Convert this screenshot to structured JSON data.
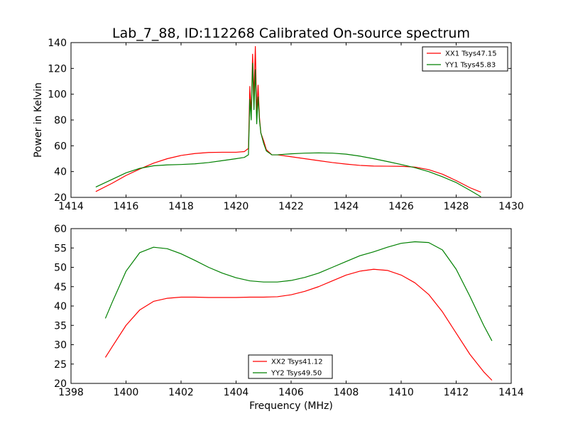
{
  "figure": {
    "title": "Lab_7_88, ID:112268 Calibrated On-source spectrum"
  },
  "chart_data": [
    {
      "type": "line",
      "title": "Lab_7_88, ID:112268 Calibrated On-source spectrum",
      "xlabel": "",
      "ylabel": "Power in Kelvin",
      "xlim": [
        1414,
        1430
      ],
      "ylim": [
        20,
        140
      ],
      "xticks": [
        1414,
        1416,
        1418,
        1420,
        1422,
        1424,
        1426,
        1428,
        1430
      ],
      "yticks": [
        20,
        40,
        60,
        80,
        100,
        120,
        140
      ],
      "grid": false,
      "legend": "top-right",
      "series": [
        {
          "name": "XX1 Tsys47.15",
          "color": "#ff0000",
          "x": [
            1414.9,
            1415.5,
            1416.0,
            1416.5,
            1417.0,
            1417.5,
            1418.0,
            1418.5,
            1419.0,
            1419.5,
            1420.0,
            1420.3,
            1420.45,
            1420.5,
            1420.55,
            1420.6,
            1420.65,
            1420.7,
            1420.75,
            1420.8,
            1420.85,
            1420.9,
            1421.0,
            1421.1,
            1421.3,
            1421.5,
            1422.0,
            1422.5,
            1423.0,
            1423.5,
            1424.0,
            1424.5,
            1425.0,
            1425.5,
            1426.0,
            1426.5,
            1427.0,
            1427.5,
            1428.0,
            1428.5,
            1428.9
          ],
          "y": [
            24.5,
            31,
            37,
            42,
            46.5,
            50,
            52.5,
            54,
            54.8,
            55,
            55,
            55.5,
            58,
            106,
            84,
            131,
            98,
            137,
            85,
            107,
            82,
            70,
            64,
            57,
            53,
            53,
            51.5,
            50,
            48.5,
            47,
            45.8,
            44.8,
            44.3,
            44.2,
            44.1,
            43.5,
            41.5,
            38,
            33,
            27.5,
            24
          ]
        },
        {
          "name": "YY1 Tsys45.83",
          "color": "#008000",
          "x": [
            1414.9,
            1415.5,
            1416.0,
            1416.5,
            1417.0,
            1417.5,
            1418.0,
            1418.5,
            1419.0,
            1419.5,
            1420.0,
            1420.3,
            1420.45,
            1420.5,
            1420.55,
            1420.6,
            1420.65,
            1420.7,
            1420.75,
            1420.8,
            1420.85,
            1420.9,
            1421.0,
            1421.1,
            1421.3,
            1421.5,
            1422.0,
            1422.5,
            1423.0,
            1423.5,
            1424.0,
            1424.5,
            1425.0,
            1425.5,
            1426.0,
            1426.5,
            1427.0,
            1427.5,
            1428.0,
            1428.5,
            1428.9
          ],
          "y": [
            28,
            34,
            39,
            42.5,
            44.5,
            45.2,
            45.5,
            46,
            47,
            48.5,
            50,
            51,
            53,
            96,
            80,
            124,
            88,
            119,
            77,
            98,
            80,
            70,
            62,
            56,
            53,
            53,
            53.8,
            54.3,
            54.5,
            54.3,
            53.5,
            52,
            50,
            47.8,
            45.5,
            43,
            40,
            36,
            31.5,
            25.5,
            20.5
          ]
        }
      ]
    },
    {
      "type": "line",
      "title": "",
      "xlabel": "Frequency (MHz)",
      "ylabel": "",
      "xlim": [
        1398,
        1414
      ],
      "ylim": [
        20,
        60
      ],
      "xticks": [
        1398,
        1400,
        1402,
        1404,
        1406,
        1408,
        1410,
        1412,
        1414
      ],
      "yticks": [
        20,
        25,
        30,
        35,
        40,
        45,
        50,
        55,
        60
      ],
      "grid": false,
      "legend": "bottom-center",
      "series": [
        {
          "name": "XX2 Tsys41.12",
          "color": "#ff0000",
          "x": [
            1399.25,
            1399.5,
            1400.0,
            1400.5,
            1401.0,
            1401.5,
            1402.0,
            1402.5,
            1403.0,
            1403.5,
            1404.0,
            1404.5,
            1405.0,
            1405.5,
            1406.0,
            1406.5,
            1407.0,
            1407.5,
            1408.0,
            1408.5,
            1409.0,
            1409.5,
            1410.0,
            1410.5,
            1411.0,
            1411.5,
            1412.0,
            1412.5,
            1413.0,
            1413.3
          ],
          "y": [
            26.7,
            29.5,
            35,
            39,
            41.2,
            42,
            42.3,
            42.3,
            42.2,
            42.2,
            42.2,
            42.3,
            42.3,
            42.4,
            42.9,
            43.8,
            45,
            46.5,
            48,
            49,
            49.5,
            49.2,
            48,
            46,
            43,
            38.5,
            33,
            27.5,
            23,
            20.8
          ]
        },
        {
          "name": "YY2 Tsys49.50",
          "color": "#008000",
          "x": [
            1399.25,
            1399.5,
            1400.0,
            1400.5,
            1401.0,
            1401.5,
            1402.0,
            1402.5,
            1403.0,
            1403.5,
            1404.0,
            1404.5,
            1405.0,
            1405.5,
            1406.0,
            1406.5,
            1407.0,
            1407.5,
            1408.0,
            1408.5,
            1409.0,
            1409.5,
            1410.0,
            1410.5,
            1411.0,
            1411.5,
            1412.0,
            1412.5,
            1413.0,
            1413.3
          ],
          "y": [
            36.8,
            41,
            49,
            53.8,
            55.2,
            54.8,
            53.5,
            51.8,
            50,
            48.5,
            47.3,
            46.5,
            46.2,
            46.2,
            46.6,
            47.4,
            48.5,
            50,
            51.5,
            53,
            54,
            55.2,
            56.2,
            56.6,
            56.4,
            54.5,
            49.5,
            42.5,
            35,
            31
          ]
        }
      ]
    }
  ]
}
